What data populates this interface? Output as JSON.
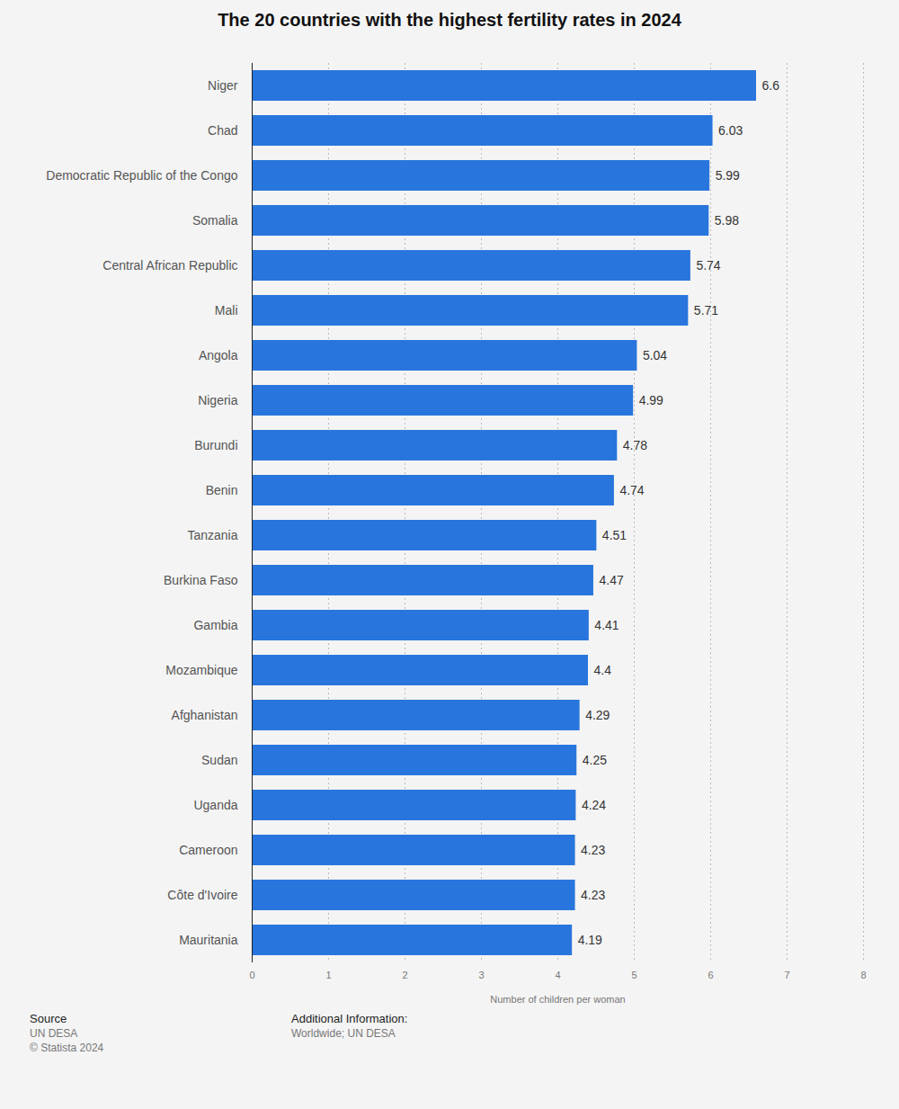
{
  "chart_data": {
    "type": "bar",
    "orientation": "horizontal",
    "title": "The 20 countries with the highest fertility rates in 2024",
    "x_label": "Number of children per woman",
    "categories": [
      "Niger",
      "Chad",
      "Democratic Republic of the Congo",
      "Somalia",
      "Central African Republic",
      "Mali",
      "Angola",
      "Nigeria",
      "Burundi",
      "Benin",
      "Tanzania",
      "Burkina Faso",
      "Gambia",
      "Mozambique",
      "Afghanistan",
      "Sudan",
      "Uganda",
      "Cameroon",
      "Côte d'Ivoire",
      "Mauritania"
    ],
    "values": [
      6.6,
      6.03,
      5.99,
      5.98,
      5.74,
      5.71,
      5.04,
      4.99,
      4.78,
      4.74,
      4.51,
      4.47,
      4.41,
      4.4,
      4.29,
      4.25,
      4.24,
      4.23,
      4.23,
      4.19
    ],
    "color": "#2876dd",
    "xlim": [
      0,
      8
    ],
    "xticks": [
      0,
      1,
      2,
      3,
      4,
      5,
      6,
      7,
      8
    ],
    "grid": true,
    "data_labels": true,
    "source_label": "Source",
    "source": "UN DESA",
    "copyright": "© Statista 2024",
    "additional_info_label": "Additional Information:",
    "additional_info": "Worldwide; UN DESA"
  }
}
